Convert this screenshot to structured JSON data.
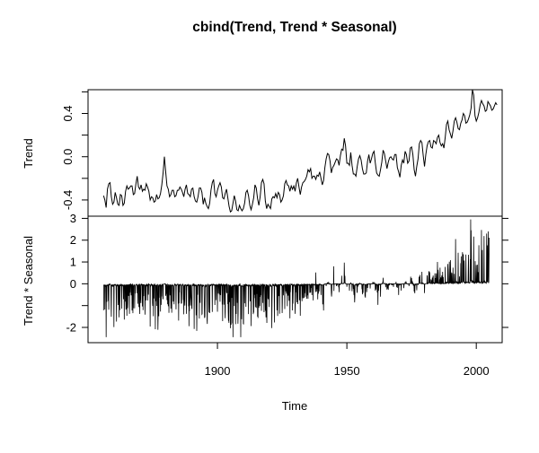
{
  "chart_data": {
    "type": "line",
    "title": "cbind(Trend, Trend * Seasonal)",
    "xlabel": "Time",
    "xlim": [
      1850,
      2010
    ],
    "x_ticks": [
      1900,
      1950,
      2000
    ],
    "x_tick_labels": [
      "1900",
      "1950",
      "2000"
    ],
    "grid": false,
    "legend": "none",
    "panels": [
      {
        "name": "Trend",
        "ylabel": "Trend",
        "ylim": [
          -0.55,
          0.62
        ],
        "y_ticks": [
          -0.4,
          0.0,
          0.4
        ],
        "y_tick_labels": [
          "-0.4",
          "0.0",
          "0.4"
        ],
        "minor_y_ticks": [
          -0.2,
          0.2,
          0.6
        ],
        "x_start": 1856,
        "x_end": 2005,
        "step_years": 0.5,
        "values": [
          -0.36,
          -0.4,
          -0.47,
          -0.3,
          -0.25,
          -0.24,
          -0.37,
          -0.44,
          -0.42,
          -0.33,
          -0.38,
          -0.44,
          -0.45,
          -0.35,
          -0.36,
          -0.45,
          -0.43,
          -0.32,
          -0.27,
          -0.3,
          -0.29,
          -0.27,
          -0.27,
          -0.35,
          -0.34,
          -0.25,
          -0.18,
          -0.28,
          -0.3,
          -0.26,
          -0.32,
          -0.3,
          -0.31,
          -0.25,
          -0.28,
          -0.32,
          -0.4,
          -0.37,
          -0.38,
          -0.42,
          -0.41,
          -0.35,
          -0.39,
          -0.38,
          -0.34,
          -0.26,
          -0.15,
          0.0,
          -0.14,
          -0.27,
          -0.3,
          -0.37,
          -0.35,
          -0.31,
          -0.31,
          -0.37,
          -0.36,
          -0.31,
          -0.31,
          -0.28,
          -0.3,
          -0.33,
          -0.37,
          -0.3,
          -0.26,
          -0.34,
          -0.35,
          -0.37,
          -0.3,
          -0.29,
          -0.37,
          -0.41,
          -0.42,
          -0.37,
          -0.29,
          -0.29,
          -0.33,
          -0.44,
          -0.38,
          -0.43,
          -0.46,
          -0.48,
          -0.43,
          -0.31,
          -0.24,
          -0.21,
          -0.34,
          -0.37,
          -0.31,
          -0.27,
          -0.24,
          -0.28,
          -0.38,
          -0.39,
          -0.34,
          -0.3,
          -0.38,
          -0.46,
          -0.51,
          -0.5,
          -0.43,
          -0.36,
          -0.41,
          -0.49,
          -0.5,
          -0.45,
          -0.48,
          -0.5,
          -0.48,
          -0.43,
          -0.33,
          -0.31,
          -0.36,
          -0.45,
          -0.49,
          -0.44,
          -0.38,
          -0.26,
          -0.29,
          -0.39,
          -0.45,
          -0.37,
          -0.24,
          -0.21,
          -0.25,
          -0.41,
          -0.48,
          -0.44,
          -0.46,
          -0.48,
          -0.39,
          -0.37,
          -0.38,
          -0.34,
          -0.38,
          -0.33,
          -0.35,
          -0.42,
          -0.4,
          -0.36,
          -0.25,
          -0.22,
          -0.26,
          -0.27,
          -0.32,
          -0.27,
          -0.3,
          -0.27,
          -0.32,
          -0.24,
          -0.2,
          -0.28,
          -0.35,
          -0.28,
          -0.24,
          -0.23,
          -0.21,
          -0.18,
          -0.12,
          -0.14,
          -0.11,
          -0.2,
          -0.18,
          -0.18,
          -0.21,
          -0.17,
          -0.18,
          -0.14,
          -0.2,
          -0.26,
          -0.22,
          -0.1,
          -0.02,
          0.03,
          0.02,
          -0.04,
          -0.15,
          -0.1,
          -0.08,
          -0.05,
          -0.02,
          -0.03,
          -0.08,
          0.01,
          0.07,
          0.06,
          0.17,
          0.1,
          -0.06,
          -0.06,
          -0.08,
          0.04,
          -0.08,
          -0.16,
          -0.16,
          -0.18,
          -0.09,
          -0.02,
          0.01,
          -0.03,
          -0.11,
          -0.16,
          -0.16,
          -0.15,
          -0.04,
          0.02,
          -0.06,
          -0.02,
          0.03,
          0.05,
          -0.06,
          -0.15,
          -0.17,
          -0.18,
          -0.12,
          -0.05,
          0.06,
          0.03,
          -0.04,
          -0.11,
          -0.05,
          -0.01,
          0.0,
          -0.02,
          -0.03,
          0.02,
          0.02,
          -0.1,
          -0.14,
          -0.19,
          -0.08,
          -0.03,
          -0.06,
          0.05,
          0.02,
          -0.06,
          -0.04,
          0.08,
          0.09,
          0.02,
          -0.12,
          -0.18,
          -0.09,
          -0.02,
          0.12,
          0.15,
          0.13,
          0.01,
          -0.09,
          0.02,
          0.1,
          0.14,
          0.15,
          0.09,
          0.08,
          0.15,
          0.14,
          0.12,
          0.18,
          0.2,
          0.13,
          0.1,
          0.12,
          0.08,
          0.18,
          0.3,
          0.33,
          0.25,
          0.21,
          0.17,
          0.24,
          0.33,
          0.36,
          0.32,
          0.26,
          0.25,
          0.31,
          0.34,
          0.4,
          0.38,
          0.31,
          0.32,
          0.35,
          0.39,
          0.45,
          0.62,
          0.57,
          0.38,
          0.33,
          0.36,
          0.41,
          0.48,
          0.52,
          0.49,
          0.47,
          0.42,
          0.43,
          0.51,
          0.49,
          0.47,
          0.43,
          0.44,
          0.47,
          0.5,
          0.48
        ]
      },
      {
        "name": "Trend * Seasonal",
        "ylabel": "Trend * Seasonal",
        "ylim": [
          -2.7,
          3.1
        ],
        "y_ticks": [
          -2,
          0,
          1,
          2,
          3
        ],
        "y_tick_labels": [
          "-2",
          "0",
          "1",
          "2",
          "3"
        ],
        "minor_y_ticks": [
          -1
        ],
        "x_start": 1856,
        "x_end": 2005,
        "note": "monthly series: trend value multiplied by a seasonal factor; negative spikes dominate before ~1935, positive spikes after ~1975",
        "notable_points": [
          {
            "x": 1997.8,
            "y": 2.95
          },
          {
            "x": 2004.6,
            "y": 2.4
          },
          {
            "x": 1944.9,
            "y": 0.8
          },
          {
            "x": 1938.0,
            "y": 0.52
          }
        ]
      }
    ]
  }
}
